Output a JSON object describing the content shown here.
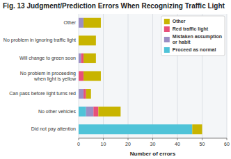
{
  "chart_data": {
    "type": "bar",
    "orientation": "horizontal",
    "stacked": true,
    "title": "Fig. 13  Judgment/Prediction Errors When Recognizing Traffic Light",
    "x_label": "Number of errors",
    "categories": [
      "Other",
      "No problem in ignoring traffic light",
      "Will change to green soon",
      "No problem in proceeding\nwhen light is yellow",
      "Can pass before light turns red",
      "No other vehicles",
      "Did not pay attention"
    ],
    "series": [
      {
        "name": "Proceed as normal",
        "color": "#4fc3d8",
        "values": [
          0,
          0,
          0,
          0,
          0,
          3,
          46
        ]
      },
      {
        "name": "Mistaken assumption\nor habit",
        "color": "#9b8ec4",
        "values": [
          2,
          0,
          1,
          0,
          2,
          3,
          0
        ]
      },
      {
        "name": "Red traffic light",
        "color": "#e8507a",
        "values": [
          0,
          0,
          1,
          2,
          1,
          2,
          0
        ]
      },
      {
        "name": "Other",
        "color": "#c8b400",
        "values": [
          7,
          7,
          5,
          7,
          2,
          9,
          4
        ]
      }
    ],
    "xlim": [
      0,
      60
    ],
    "xticks": [
      0,
      10,
      20,
      30,
      40,
      50,
      60
    ],
    "grid": true,
    "legend": "upper right"
  }
}
